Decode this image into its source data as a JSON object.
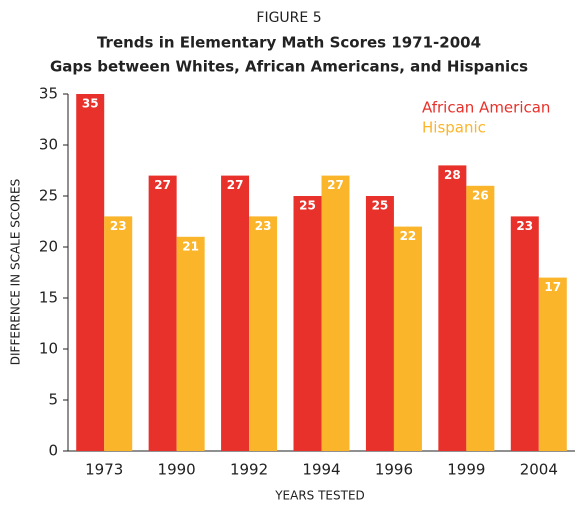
{
  "chart_data": {
    "type": "bar",
    "figure_label": "FIGURE 5",
    "title": "Trends in Elementary Math Scores 1971-2004",
    "subtitle": "Gaps between Whites, African Americans, and Hispanics",
    "x_label": "YEARS TESTED",
    "y_label": "DIFFERENCE IN SCALE SCORES",
    "categories": [
      "1973",
      "1990",
      "1992",
      "1994",
      "1996",
      "1999",
      "2004"
    ],
    "series": [
      {
        "name": "African American",
        "color": "#e8312a",
        "values": [
          35,
          27,
          27,
          25,
          25,
          28,
          23
        ]
      },
      {
        "name": "Hispanic",
        "color": "#fbb52b",
        "values": [
          23,
          21,
          23,
          27,
          22,
          26,
          17
        ]
      }
    ],
    "ylim": [
      0,
      35
    ],
    "yticks": [
      0,
      5,
      10,
      15,
      20,
      25,
      30,
      35
    ],
    "grid": false,
    "legend": "top-right"
  }
}
